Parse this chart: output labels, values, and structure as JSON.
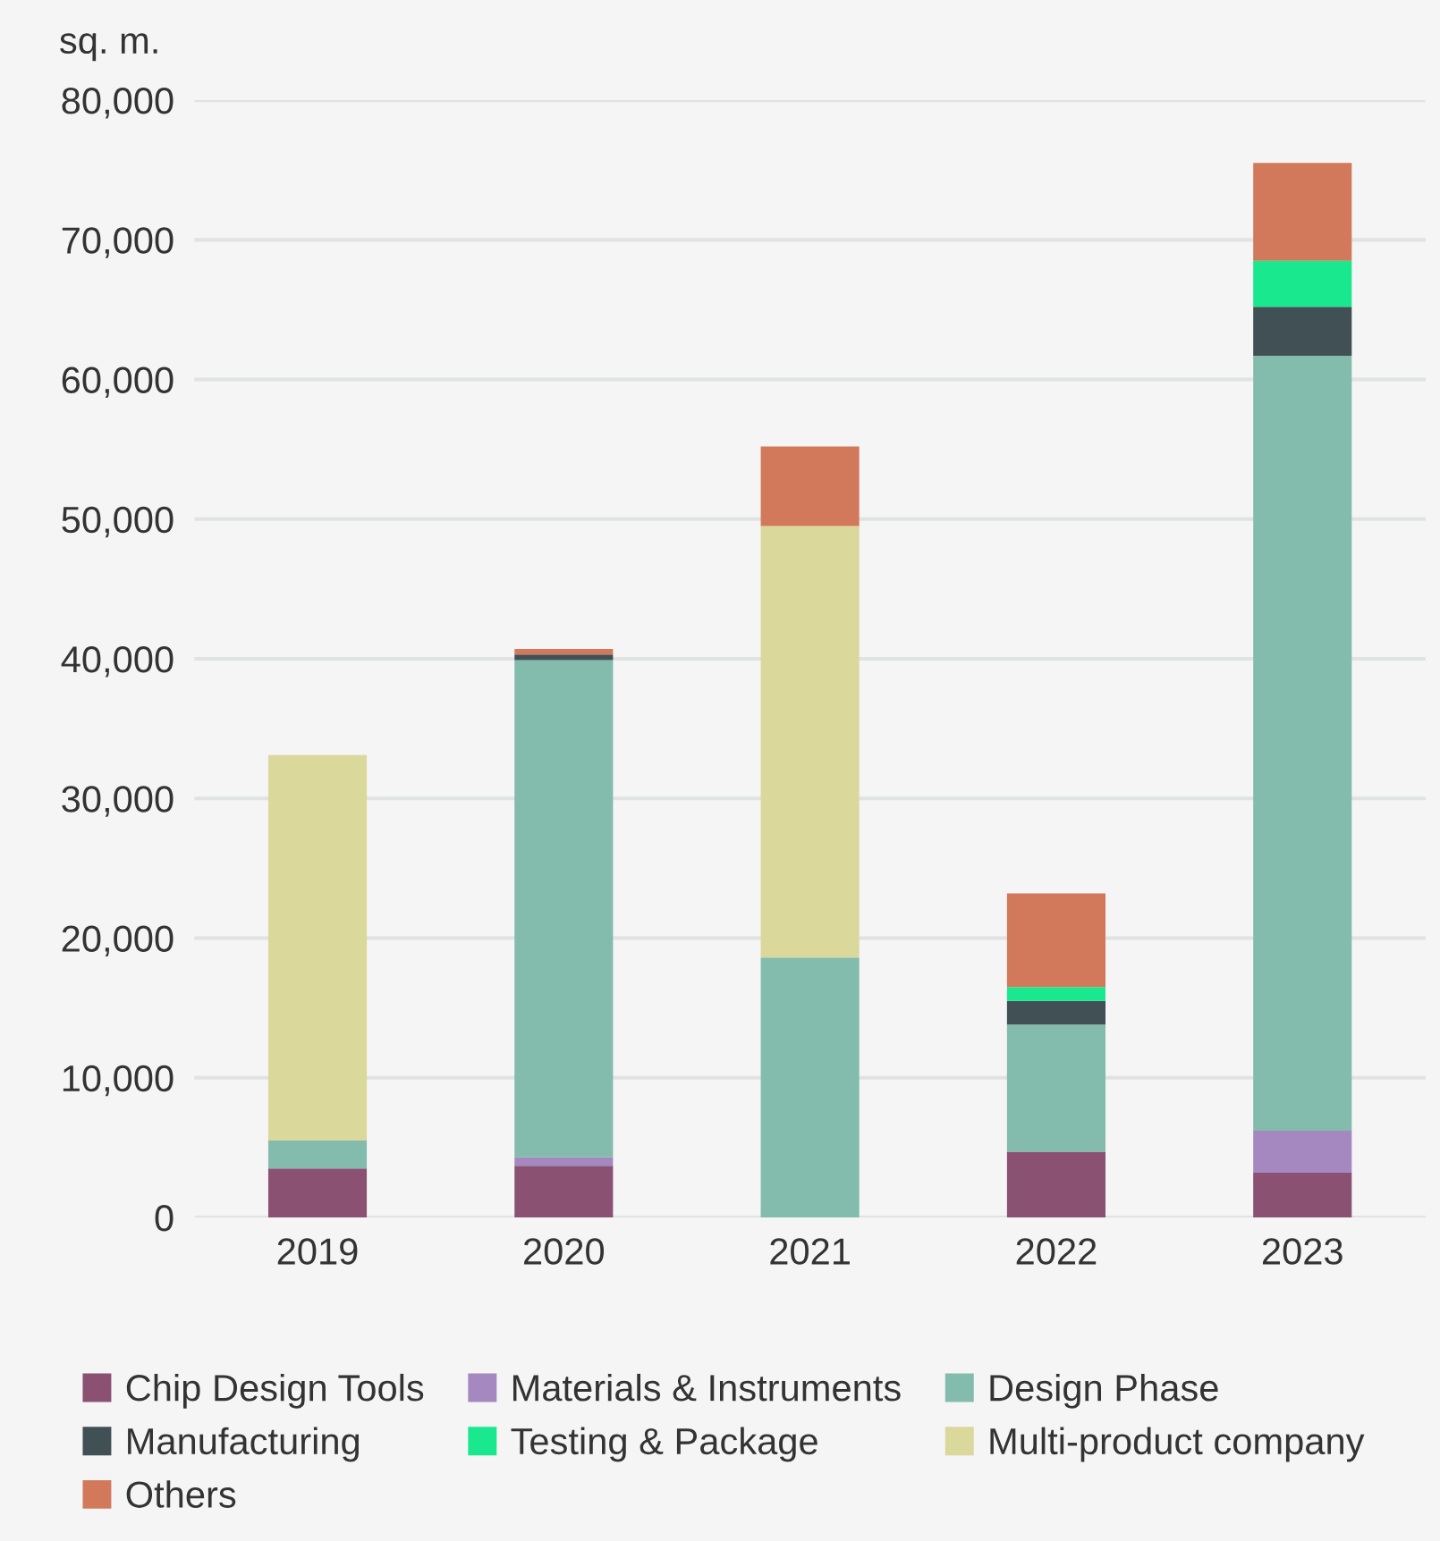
{
  "chart_data": {
    "type": "bar",
    "stacked": true,
    "ylabel": "sq. m.",
    "categories": [
      "2019",
      "2020",
      "2021",
      "2022",
      "2023"
    ],
    "series": [
      {
        "name": "Chip Design Tools",
        "color": "#8a5172",
        "values": [
          3500,
          3700,
          0,
          4700,
          3200
        ]
      },
      {
        "name": "Materials & Instruments",
        "color": "#a488bf",
        "values": [
          0,
          600,
          0,
          0,
          3000
        ]
      },
      {
        "name": "Design Phase",
        "color": "#83bbad",
        "values": [
          2000,
          35600,
          18600,
          9100,
          55500
        ]
      },
      {
        "name": "Manufacturing",
        "color": "#415055",
        "values": [
          0,
          400,
          0,
          1700,
          3500
        ]
      },
      {
        "name": "Testing & Package",
        "color": "#1ae88f",
        "values": [
          0,
          0,
          0,
          1000,
          3300
        ]
      },
      {
        "name": "Multi-product company",
        "color": "#dbd89c",
        "values": [
          27600,
          0,
          30900,
          0,
          0
        ]
      },
      {
        "name": "Others",
        "color": "#d2795c",
        "values": [
          0,
          400,
          5700,
          6700,
          7000
        ]
      }
    ],
    "ylim": [
      0,
      80000
    ],
    "yticks": [
      {
        "value": 0,
        "label": "0"
      },
      {
        "value": 10000,
        "label": "10,000"
      },
      {
        "value": 20000,
        "label": "20,000"
      },
      {
        "value": 30000,
        "label": "30,000"
      },
      {
        "value": 40000,
        "label": "40,000"
      },
      {
        "value": 50000,
        "label": "50,000"
      },
      {
        "value": 60000,
        "label": "60,000"
      },
      {
        "value": 70000,
        "label": "70,000"
      },
      {
        "value": 80000,
        "label": "80,000"
      }
    ],
    "grid": "y",
    "legend": "bottom"
  }
}
